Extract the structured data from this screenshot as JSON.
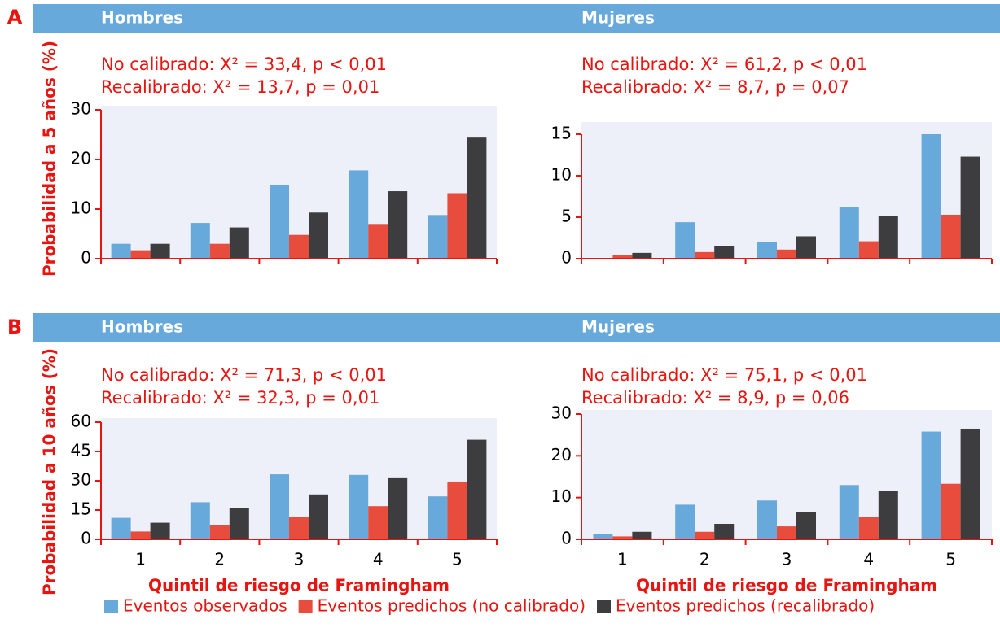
{
  "panels": [
    "A",
    "B"
  ],
  "chart_data": [
    {
      "type": "bar",
      "title": "Hombres",
      "ylabel": "Probabilidad a 5 años (%)",
      "annotations": [
        "No calibrado: X² = 33,4, p < 0,01",
        "Recalibrado: X² = 13,7, p = 0,01"
      ],
      "categories": [
        null,
        null,
        null,
        null,
        null
      ],
      "series": [
        {
          "name": "Eventos observados",
          "color": "#68a9dc",
          "values": [
            3.0,
            7.2,
            14.8,
            17.8,
            8.8
          ]
        },
        {
          "name": "Eventos predichos (no calibrado)",
          "color": "#e84c3d",
          "values": [
            1.7,
            3.0,
            4.8,
            7.0,
            13.2
          ]
        },
        {
          "name": "Eventos predichos (recalibrado)",
          "color": "#3d3d3f",
          "values": [
            3.0,
            6.3,
            9.3,
            13.6,
            24.4
          ]
        }
      ],
      "ylim": [
        0,
        30
      ],
      "yticks": [
        0,
        10,
        20,
        30
      ]
    },
    {
      "type": "bar",
      "title": "Mujeres",
      "annotations": [
        "No calibrado: X² = 61,2, p < 0,01",
        "Recalibrado: X² = 8,7, p = 0,07"
      ],
      "categories": [
        null,
        null,
        null,
        null,
        null
      ],
      "series": [
        {
          "color": "#68a9dc",
          "values": [
            0,
            4.4,
            2.0,
            6.2,
            15.0
          ]
        },
        {
          "color": "#e84c3d",
          "values": [
            0.4,
            0.8,
            1.1,
            2.1,
            5.3
          ]
        },
        {
          "color": "#3d3d3f",
          "values": [
            0.7,
            1.5,
            2.7,
            5.1,
            12.3
          ]
        }
      ],
      "ylim": [
        0,
        15
      ],
      "yticks": [
        0,
        5,
        10,
        15
      ]
    },
    {
      "type": "bar",
      "title": "Hombres",
      "ylabel": "Probabilidad a 10 años (%)",
      "xlabel": "Quintil de riesgo de Framingham",
      "annotations": [
        "No calibrado: X² = 71,3, p < 0,01",
        "Recalibrado: X² = 32,3, p = 0,01"
      ],
      "categories": [
        "1",
        "2",
        "3",
        "4",
        "5"
      ],
      "series": [
        {
          "color": "#68a9dc",
          "values": [
            11,
            19,
            33.3,
            33,
            22
          ]
        },
        {
          "color": "#e84c3d",
          "values": [
            4,
            7.5,
            11.5,
            17,
            29.6
          ]
        },
        {
          "color": "#3d3d3f",
          "values": [
            8.5,
            16,
            23,
            31.3,
            51
          ]
        }
      ],
      "ylim": [
        0,
        60
      ],
      "yticks": [
        0,
        15,
        30,
        45,
        60
      ]
    },
    {
      "type": "bar",
      "title": "Mujeres",
      "xlabel": "Quintil de riesgo de Framingham",
      "annotations": [
        "No calibrado: X² = 75,1, p < 0,01",
        "Recalibrado: X² = 8,9, p = 0,06"
      ],
      "categories": [
        "1",
        "2",
        "3",
        "4",
        "5"
      ],
      "series": [
        {
          "color": "#68a9dc",
          "values": [
            1.2,
            8.3,
            9.3,
            13,
            25.8
          ]
        },
        {
          "color": "#e84c3d",
          "values": [
            0.7,
            1.8,
            3.1,
            5.4,
            13.3
          ]
        },
        {
          "color": "#3d3d3f",
          "values": [
            1.8,
            3.7,
            6.6,
            11.6,
            26.5
          ]
        }
      ],
      "ylim": [
        0,
        30
      ],
      "yticks": [
        0,
        10,
        20,
        30
      ]
    }
  ]
}
